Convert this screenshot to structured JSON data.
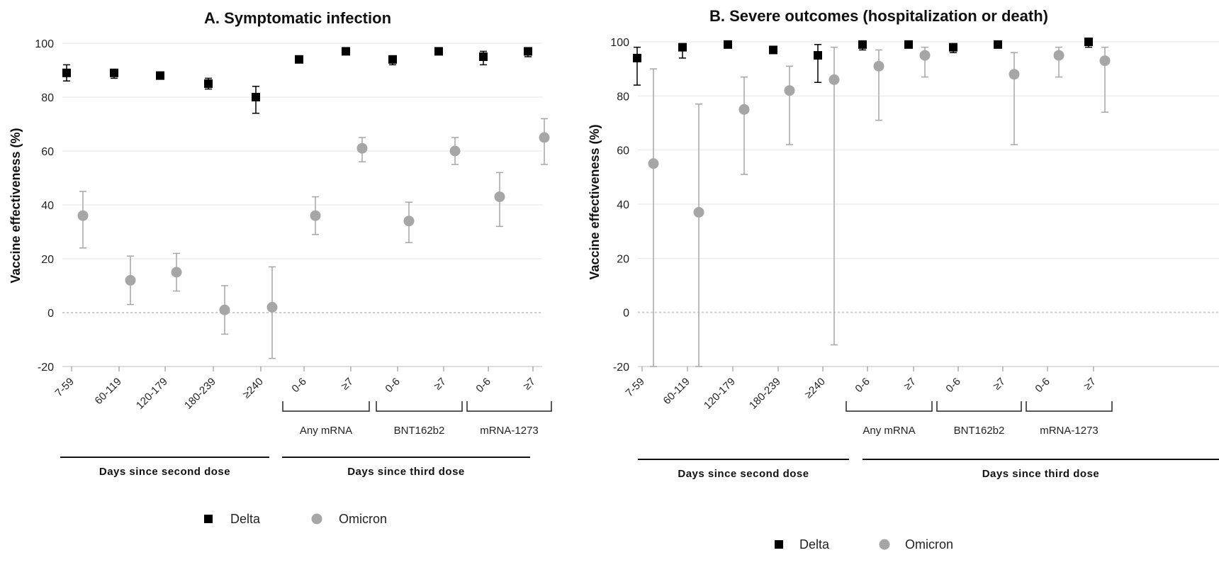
{
  "colors": {
    "delta": "#000000",
    "omicron": "#a6a6a6",
    "grid": "#e6e6e6",
    "zero_line": "#cfcfcf"
  },
  "chart_data": [
    {
      "type": "scatter",
      "title": "A. Symptomatic infection",
      "ylabel": "Vaccine effectiveness (%)",
      "ylim": [
        -20,
        100
      ],
      "yticks": [
        -20,
        0,
        20,
        40,
        60,
        80,
        100
      ],
      "grid": true,
      "categories": [
        "7-59",
        "60-119",
        "120-179",
        "180-239",
        "≥240",
        "0-6",
        "≥7",
        "0-6",
        "≥7",
        "0-6",
        "≥7"
      ],
      "groups": [
        {
          "label": "Any mRNA",
          "categories": [
            5,
            6
          ]
        },
        {
          "label": "BNT162b2",
          "categories": [
            7,
            8
          ]
        },
        {
          "label": "mRNA-1273",
          "categories": [
            9,
            10
          ]
        }
      ],
      "sections": [
        {
          "label": "Days since second dose",
          "categories": [
            0,
            4
          ]
        },
        {
          "label": "Days since third dose",
          "categories": [
            5,
            10
          ]
        }
      ],
      "series": [
        {
          "name": "Delta",
          "marker": "square",
          "values": [
            89,
            89,
            88,
            85,
            80,
            94,
            97,
            94,
            97,
            95,
            97
          ],
          "ci_low": [
            86,
            87,
            87,
            83,
            74,
            93,
            96,
            92,
            96,
            92,
            95
          ],
          "ci_high": [
            92,
            90,
            89,
            87,
            84,
            95,
            98,
            95,
            98,
            97,
            98
          ]
        },
        {
          "name": "Omicron",
          "marker": "circle",
          "values": [
            36,
            12,
            15,
            1,
            2,
            36,
            61,
            34,
            60,
            43,
            65
          ],
          "ci_low": [
            24,
            3,
            8,
            -8,
            -17,
            29,
            56,
            26,
            55,
            32,
            55
          ],
          "ci_high": [
            45,
            21,
            22,
            10,
            17,
            43,
            65,
            41,
            65,
            52,
            72
          ]
        }
      ],
      "legend": {
        "placement": "bottom",
        "items": [
          "Delta",
          "Omicron"
        ]
      }
    },
    {
      "type": "scatter",
      "title": "B. Severe outcomes (hospitalization or death)",
      "ylabel": "Vaccine effectiveness (%)",
      "ylim": [
        -20,
        100
      ],
      "yticks": [
        -20,
        0,
        20,
        40,
        60,
        80,
        100
      ],
      "grid": true,
      "categories": [
        "7-59",
        "60-119",
        "120-179",
        "180-239",
        "≥240",
        "0-6",
        "≥7",
        "0-6",
        "≥7",
        "0-6",
        "≥7"
      ],
      "groups": [
        {
          "label": "Any mRNA",
          "categories": [
            5,
            6
          ]
        },
        {
          "label": "BNT162b2",
          "categories": [
            7,
            8
          ]
        },
        {
          "label": "mRNA-1273",
          "categories": [
            9,
            10
          ]
        }
      ],
      "sections": [
        {
          "label": "Days since second dose",
          "categories": [
            0,
            4
          ]
        },
        {
          "label": "Days since third dose",
          "categories": [
            5,
            10
          ]
        }
      ],
      "series": [
        {
          "name": "Delta",
          "marker": "square",
          "values": [
            94,
            98,
            99,
            97,
            95,
            99,
            99,
            98,
            99,
            null,
            100
          ],
          "ci_low": [
            84,
            94,
            null,
            null,
            85,
            97,
            null,
            96,
            null,
            null,
            98
          ],
          "ci_high": [
            98,
            99,
            null,
            null,
            99,
            100,
            null,
            99,
            null,
            null,
            100
          ]
        },
        {
          "name": "Omicron",
          "marker": "circle",
          "values": [
            55,
            37,
            75,
            82,
            86,
            91,
            95,
            null,
            88,
            95,
            93
          ],
          "ci_low": [
            -20,
            -20,
            51,
            62,
            -12,
            71,
            87,
            null,
            62,
            87,
            74
          ],
          "ci_high": [
            90,
            77,
            87,
            91,
            98,
            97,
            98,
            null,
            96,
            98,
            98
          ]
        }
      ],
      "legend": {
        "placement": "bottom",
        "items": [
          "Delta",
          "Omicron"
        ]
      }
    }
  ]
}
